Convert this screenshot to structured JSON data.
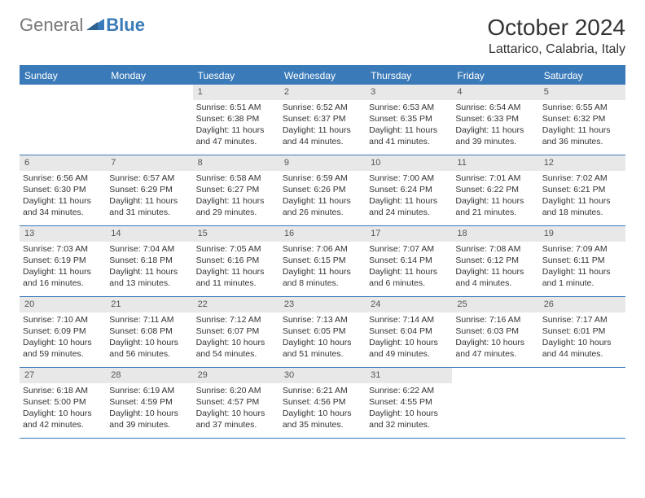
{
  "logo": {
    "general": "General",
    "blue": "Blue"
  },
  "title": "October 2024",
  "location": "Lattarico, Calabria, Italy",
  "colors": {
    "header_bg": "#3a7ab8",
    "daynum_bg": "#e8e8e8",
    "text": "#333333",
    "logo_gray": "#777777"
  },
  "weekdays": [
    "Sunday",
    "Monday",
    "Tuesday",
    "Wednesday",
    "Thursday",
    "Friday",
    "Saturday"
  ],
  "weeks": [
    [
      {
        "n": "",
        "sun": "",
        "set": "",
        "dl": ""
      },
      {
        "n": "",
        "sun": "",
        "set": "",
        "dl": ""
      },
      {
        "n": "1",
        "sun": "Sunrise: 6:51 AM",
        "set": "Sunset: 6:38 PM",
        "dl": "Daylight: 11 hours and 47 minutes."
      },
      {
        "n": "2",
        "sun": "Sunrise: 6:52 AM",
        "set": "Sunset: 6:37 PM",
        "dl": "Daylight: 11 hours and 44 minutes."
      },
      {
        "n": "3",
        "sun": "Sunrise: 6:53 AM",
        "set": "Sunset: 6:35 PM",
        "dl": "Daylight: 11 hours and 41 minutes."
      },
      {
        "n": "4",
        "sun": "Sunrise: 6:54 AM",
        "set": "Sunset: 6:33 PM",
        "dl": "Daylight: 11 hours and 39 minutes."
      },
      {
        "n": "5",
        "sun": "Sunrise: 6:55 AM",
        "set": "Sunset: 6:32 PM",
        "dl": "Daylight: 11 hours and 36 minutes."
      }
    ],
    [
      {
        "n": "6",
        "sun": "Sunrise: 6:56 AM",
        "set": "Sunset: 6:30 PM",
        "dl": "Daylight: 11 hours and 34 minutes."
      },
      {
        "n": "7",
        "sun": "Sunrise: 6:57 AM",
        "set": "Sunset: 6:29 PM",
        "dl": "Daylight: 11 hours and 31 minutes."
      },
      {
        "n": "8",
        "sun": "Sunrise: 6:58 AM",
        "set": "Sunset: 6:27 PM",
        "dl": "Daylight: 11 hours and 29 minutes."
      },
      {
        "n": "9",
        "sun": "Sunrise: 6:59 AM",
        "set": "Sunset: 6:26 PM",
        "dl": "Daylight: 11 hours and 26 minutes."
      },
      {
        "n": "10",
        "sun": "Sunrise: 7:00 AM",
        "set": "Sunset: 6:24 PM",
        "dl": "Daylight: 11 hours and 24 minutes."
      },
      {
        "n": "11",
        "sun": "Sunrise: 7:01 AM",
        "set": "Sunset: 6:22 PM",
        "dl": "Daylight: 11 hours and 21 minutes."
      },
      {
        "n": "12",
        "sun": "Sunrise: 7:02 AM",
        "set": "Sunset: 6:21 PM",
        "dl": "Daylight: 11 hours and 18 minutes."
      }
    ],
    [
      {
        "n": "13",
        "sun": "Sunrise: 7:03 AM",
        "set": "Sunset: 6:19 PM",
        "dl": "Daylight: 11 hours and 16 minutes."
      },
      {
        "n": "14",
        "sun": "Sunrise: 7:04 AM",
        "set": "Sunset: 6:18 PM",
        "dl": "Daylight: 11 hours and 13 minutes."
      },
      {
        "n": "15",
        "sun": "Sunrise: 7:05 AM",
        "set": "Sunset: 6:16 PM",
        "dl": "Daylight: 11 hours and 11 minutes."
      },
      {
        "n": "16",
        "sun": "Sunrise: 7:06 AM",
        "set": "Sunset: 6:15 PM",
        "dl": "Daylight: 11 hours and 8 minutes."
      },
      {
        "n": "17",
        "sun": "Sunrise: 7:07 AM",
        "set": "Sunset: 6:14 PM",
        "dl": "Daylight: 11 hours and 6 minutes."
      },
      {
        "n": "18",
        "sun": "Sunrise: 7:08 AM",
        "set": "Sunset: 6:12 PM",
        "dl": "Daylight: 11 hours and 4 minutes."
      },
      {
        "n": "19",
        "sun": "Sunrise: 7:09 AM",
        "set": "Sunset: 6:11 PM",
        "dl": "Daylight: 11 hours and 1 minute."
      }
    ],
    [
      {
        "n": "20",
        "sun": "Sunrise: 7:10 AM",
        "set": "Sunset: 6:09 PM",
        "dl": "Daylight: 10 hours and 59 minutes."
      },
      {
        "n": "21",
        "sun": "Sunrise: 7:11 AM",
        "set": "Sunset: 6:08 PM",
        "dl": "Daylight: 10 hours and 56 minutes."
      },
      {
        "n": "22",
        "sun": "Sunrise: 7:12 AM",
        "set": "Sunset: 6:07 PM",
        "dl": "Daylight: 10 hours and 54 minutes."
      },
      {
        "n": "23",
        "sun": "Sunrise: 7:13 AM",
        "set": "Sunset: 6:05 PM",
        "dl": "Daylight: 10 hours and 51 minutes."
      },
      {
        "n": "24",
        "sun": "Sunrise: 7:14 AM",
        "set": "Sunset: 6:04 PM",
        "dl": "Daylight: 10 hours and 49 minutes."
      },
      {
        "n": "25",
        "sun": "Sunrise: 7:16 AM",
        "set": "Sunset: 6:03 PM",
        "dl": "Daylight: 10 hours and 47 minutes."
      },
      {
        "n": "26",
        "sun": "Sunrise: 7:17 AM",
        "set": "Sunset: 6:01 PM",
        "dl": "Daylight: 10 hours and 44 minutes."
      }
    ],
    [
      {
        "n": "27",
        "sun": "Sunrise: 6:18 AM",
        "set": "Sunset: 5:00 PM",
        "dl": "Daylight: 10 hours and 42 minutes."
      },
      {
        "n": "28",
        "sun": "Sunrise: 6:19 AM",
        "set": "Sunset: 4:59 PM",
        "dl": "Daylight: 10 hours and 39 minutes."
      },
      {
        "n": "29",
        "sun": "Sunrise: 6:20 AM",
        "set": "Sunset: 4:57 PM",
        "dl": "Daylight: 10 hours and 37 minutes."
      },
      {
        "n": "30",
        "sun": "Sunrise: 6:21 AM",
        "set": "Sunset: 4:56 PM",
        "dl": "Daylight: 10 hours and 35 minutes."
      },
      {
        "n": "31",
        "sun": "Sunrise: 6:22 AM",
        "set": "Sunset: 4:55 PM",
        "dl": "Daylight: 10 hours and 32 minutes."
      },
      {
        "n": "",
        "sun": "",
        "set": "",
        "dl": ""
      },
      {
        "n": "",
        "sun": "",
        "set": "",
        "dl": ""
      }
    ]
  ]
}
